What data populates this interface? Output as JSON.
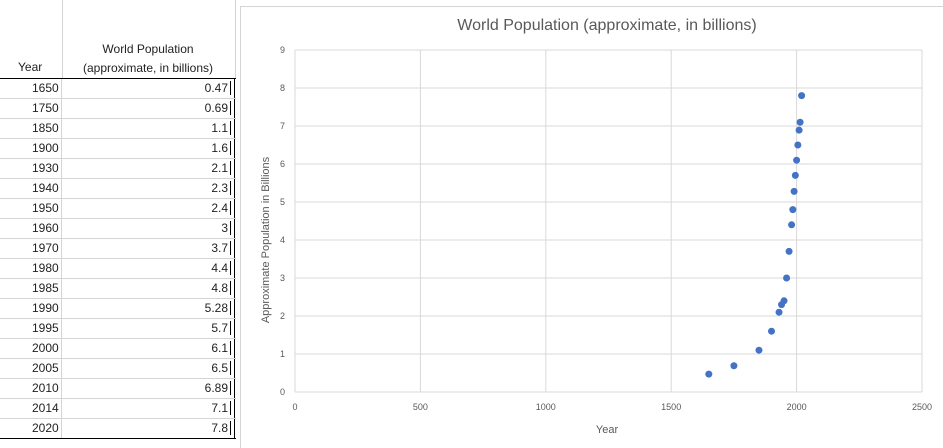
{
  "sheet": {
    "col_year_header": "Year",
    "col_pop_header_line1": "World Population",
    "col_pop_header_line2": "(approximate, in billions)",
    "rows": [
      {
        "year": "1650",
        "pop": "0.47"
      },
      {
        "year": "1750",
        "pop": "0.69"
      },
      {
        "year": "1850",
        "pop": "1.1"
      },
      {
        "year": "1900",
        "pop": "1.6"
      },
      {
        "year": "1930",
        "pop": "2.1"
      },
      {
        "year": "1940",
        "pop": "2.3"
      },
      {
        "year": "1950",
        "pop": "2.4"
      },
      {
        "year": "1960",
        "pop": "3"
      },
      {
        "year": "1970",
        "pop": "3.7"
      },
      {
        "year": "1980",
        "pop": "4.4"
      },
      {
        "year": "1985",
        "pop": "4.8"
      },
      {
        "year": "1990",
        "pop": "5.28"
      },
      {
        "year": "1995",
        "pop": "5.7"
      },
      {
        "year": "2000",
        "pop": "6.1"
      },
      {
        "year": "2005",
        "pop": "6.5"
      },
      {
        "year": "2010",
        "pop": "6.89"
      },
      {
        "year": "2014",
        "pop": "7.1"
      },
      {
        "year": "2020",
        "pop": "7.8"
      }
    ]
  },
  "chart_data": {
    "type": "scatter",
    "title": "World Population (approximate, in billions)",
    "xlabel": "Year",
    "ylabel": "Approximate Population in Billions",
    "xlim": [
      0,
      2500
    ],
    "ylim": [
      0,
      9
    ],
    "xticks": [
      "0",
      "500",
      "1000",
      "1500",
      "2000",
      "2500"
    ],
    "yticks": [
      "0",
      "1",
      "2",
      "3",
      "4",
      "5",
      "6",
      "7",
      "8",
      "9"
    ],
    "grid": true,
    "marker_color": "#4472c4",
    "x": [
      1650,
      1750,
      1850,
      1900,
      1930,
      1940,
      1950,
      1960,
      1970,
      1980,
      1985,
      1990,
      1995,
      2000,
      2005,
      2010,
      2014,
      2020
    ],
    "y": [
      0.47,
      0.69,
      1.1,
      1.6,
      2.1,
      2.3,
      2.4,
      3,
      3.7,
      4.4,
      4.8,
      5.28,
      5.7,
      6.1,
      6.5,
      6.89,
      7.1,
      7.8
    ]
  }
}
